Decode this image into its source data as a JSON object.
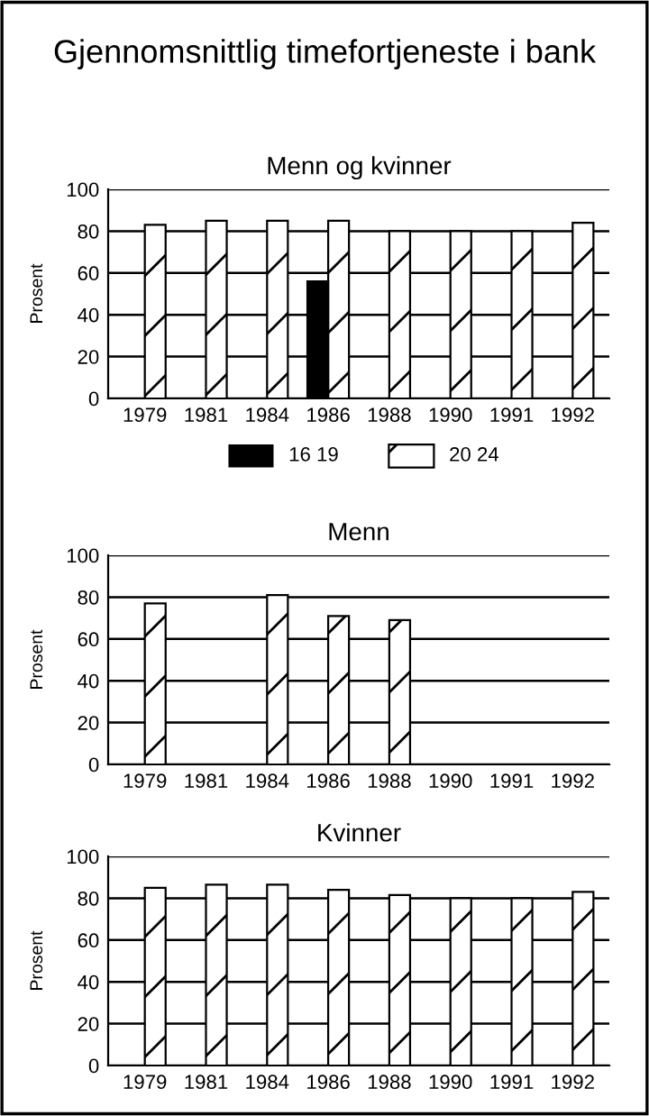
{
  "chart_data": [
    {
      "type": "bar",
      "title": "Gjennomsnittlig timefortjeneste i bank",
      "subtitle": "Menn og kvinner",
      "ylabel": "Prosent",
      "categories": [
        "1979",
        "1981",
        "1984",
        "1986",
        "1988",
        "1990",
        "1991",
        "1992"
      ],
      "series": [
        {
          "name": "16 19",
          "color": "#000000",
          "values": [
            null,
            null,
            null,
            56,
            null,
            null,
            null,
            null
          ]
        },
        {
          "name": "20 24",
          "color": "#ffffff",
          "values": [
            83,
            85,
            85,
            85,
            80,
            80,
            80,
            84
          ]
        }
      ],
      "ylim": [
        0,
        100
      ],
      "yticks": [
        0,
        20,
        40,
        60,
        80,
        100
      ],
      "grid": "y",
      "legend": "bottom"
    },
    {
      "type": "bar",
      "title": "Menn",
      "ylabel": "Prosent",
      "categories": [
        "1979",
        "1981",
        "1984",
        "1986",
        "1988",
        "1990",
        "1991",
        "1992"
      ],
      "series": [
        {
          "color": "#ffffff",
          "values": [
            77,
            null,
            81,
            71,
            69,
            null,
            null,
            null
          ]
        }
      ],
      "ylim": [
        0,
        100
      ],
      "yticks": [
        0,
        20,
        40,
        60,
        80,
        100
      ],
      "grid": "y"
    },
    {
      "type": "bar",
      "title": "Kvinner",
      "ylabel": "Prosent",
      "categories": [
        "1979",
        "1981",
        "1984",
        "1986",
        "1988",
        "1990",
        "1991",
        "1992"
      ],
      "series": [
        {
          "color": "#ffffff",
          "values": [
            85,
            86.5,
            86.5,
            84,
            81.5,
            80,
            80,
            83
          ]
        }
      ],
      "ylim": [
        0,
        100
      ],
      "yticks": [
        0,
        20,
        40,
        60,
        80,
        100
      ],
      "grid": "y"
    }
  ]
}
